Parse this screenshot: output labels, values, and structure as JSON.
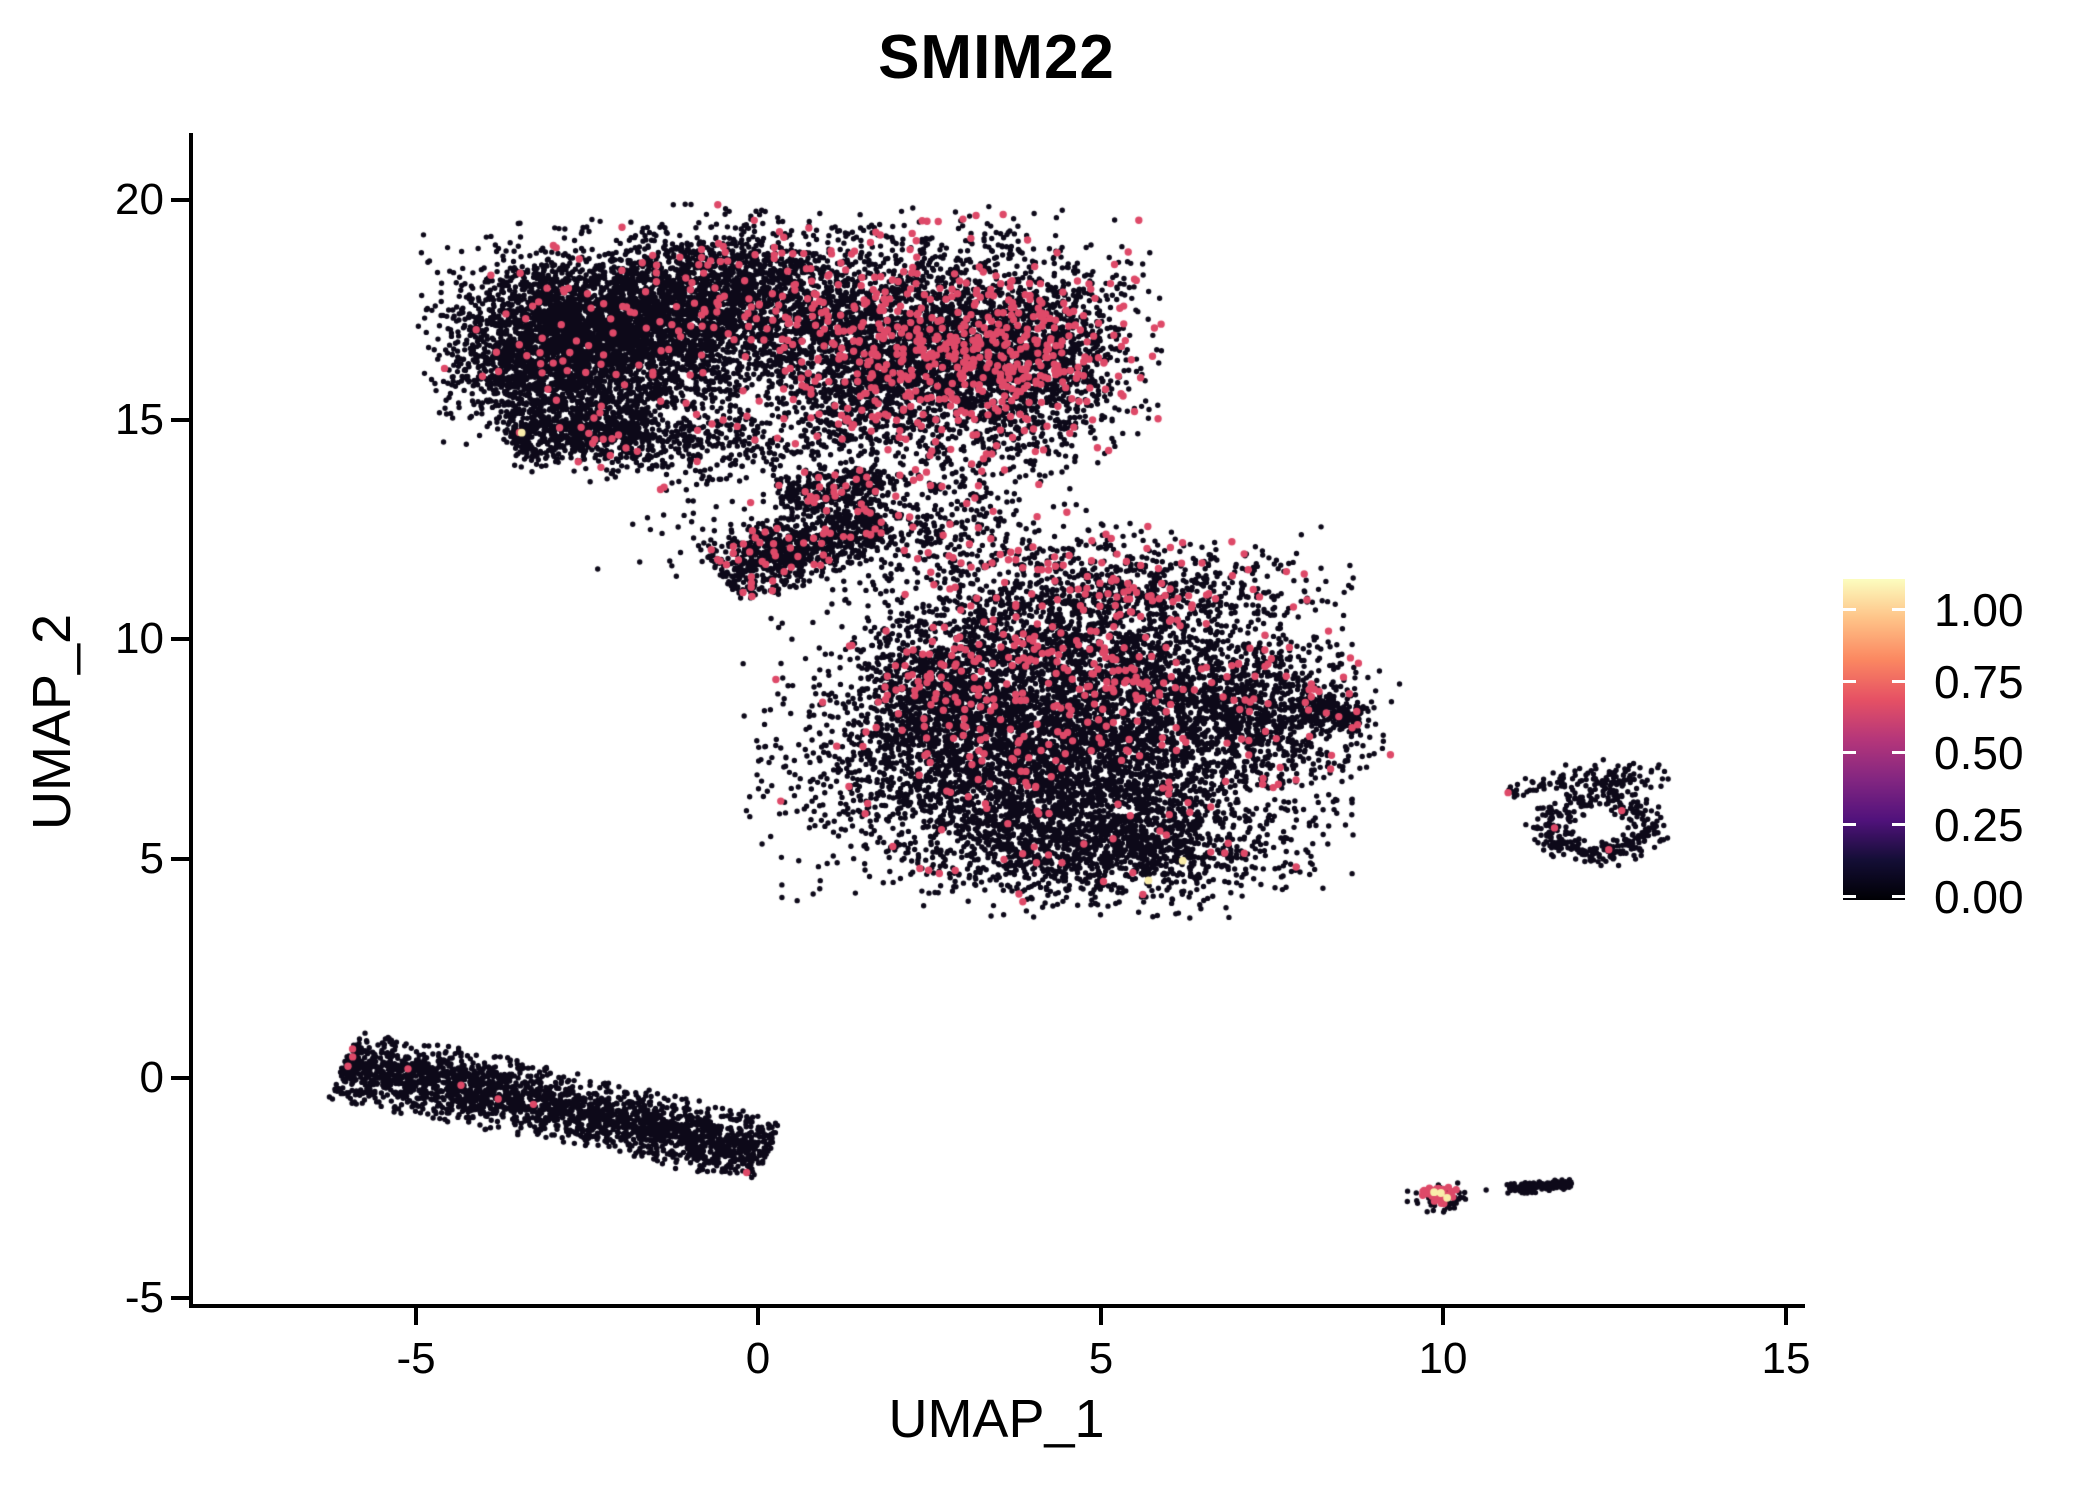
{
  "title": "SMIM22",
  "axes": {
    "xlabel": "UMAP_1",
    "ylabel": "UMAP_2",
    "x_tick_labels": [
      "-5",
      "0",
      "5",
      "10",
      "15"
    ],
    "y_tick_labels": [
      "20",
      "15",
      "10",
      "5",
      "0",
      "-5"
    ]
  },
  "colorbar": {
    "labels": [
      "1.00",
      "0.75",
      "0.50",
      "0.25",
      "0.00"
    ],
    "stops_from_bottom": [
      {
        "p": 0.0,
        "c": "#000004"
      },
      {
        "p": 0.125,
        "c": "#140e36"
      },
      {
        "p": 0.25,
        "c": "#51127c"
      },
      {
        "p": 0.375,
        "c": "#832681"
      },
      {
        "p": 0.5,
        "c": "#b5367a"
      },
      {
        "p": 0.625,
        "c": "#e65164"
      },
      {
        "p": 0.75,
        "c": "#fb8861"
      },
      {
        "p": 0.875,
        "c": "#fec287"
      },
      {
        "p": 1.0,
        "c": "#fcfdbf"
      }
    ]
  },
  "chart_data": {
    "type": "scatter",
    "title": "SMIM22",
    "xlabel": "UMAP_1",
    "ylabel": "UMAP_2",
    "x_ticks": [
      -5,
      0,
      5,
      10,
      15
    ],
    "y_ticks": [
      -5,
      0,
      5,
      10,
      15,
      20
    ],
    "xlim": [
      -8.3,
      15.3
    ],
    "ylim": [
      -5.3,
      21.6
    ],
    "legend_position": "right",
    "grid": false,
    "color_scale": {
      "low_value": 0.0,
      "high_value": 1.0,
      "colormap": "magma"
    },
    "point_colors": {
      "black": "#0d0919",
      "red": "#de4968",
      "cream": "#f9edaa"
    },
    "point_radius": {
      "black": 2.7,
      "red": 3.7,
      "cream": 3.9
    },
    "clusters": [
      {
        "name": "top-left-lobe-core",
        "shape": "gauss",
        "cx": -2.0,
        "cy": 17.0,
        "sx": 1.15,
        "sy": 1.0,
        "n": 3600,
        "red": 0.02
      },
      {
        "name": "top-left-lobe-west",
        "shape": "gauss",
        "cx": -3.2,
        "cy": 16.3,
        "sx": 0.62,
        "sy": 0.85,
        "n": 900,
        "red": 0.015
      },
      {
        "name": "top-left-south-tail",
        "shape": "line",
        "x1": -3.6,
        "y1": 14.55,
        "x2": -1.6,
        "y2": 14.85,
        "w": 0.32,
        "n": 520,
        "red": 0.02
      },
      {
        "name": "top-mid-upper",
        "shape": "gauss",
        "cx": -0.2,
        "cy": 17.9,
        "sx": 0.85,
        "sy": 0.8,
        "n": 1100,
        "red": 0.05
      },
      {
        "name": "top-right-lobe",
        "shape": "gauss",
        "cx": 2.9,
        "cy": 16.6,
        "sx": 1.15,
        "sy": 1.25,
        "n": 3000,
        "red": 0.14
      },
      {
        "name": "top-right-lobe-east",
        "shape": "gauss",
        "cx": 4.2,
        "cy": 16.3,
        "sx": 0.5,
        "sy": 0.95,
        "n": 550,
        "red": 0.16
      },
      {
        "name": "top-center-column",
        "shape": "gauss",
        "cx": 1.4,
        "cy": 16.2,
        "sx": 0.7,
        "sy": 1.3,
        "n": 950,
        "red": 0.1
      },
      {
        "name": "top-south-sparse",
        "shape": "gauss",
        "cx": -1.2,
        "cy": 14.5,
        "sx": 1.0,
        "sy": 0.45,
        "n": 420,
        "red": 0.03
      },
      {
        "name": "isthmus-wedge",
        "shape": "line",
        "x1": -0.55,
        "y1": 11.45,
        "x2": 1.8,
        "y2": 12.75,
        "w": 0.36,
        "n": 780,
        "red": 0.07
      },
      {
        "name": "isthmus-upper-streak",
        "shape": "line",
        "x1": 0.3,
        "y1": 13.25,
        "x2": 1.8,
        "y2": 13.6,
        "w": 0.25,
        "n": 230,
        "red": 0.1
      },
      {
        "name": "bridge-sparse",
        "shape": "gauss",
        "cx": 2.7,
        "cy": 12.7,
        "sx": 0.85,
        "sy": 0.75,
        "n": 300,
        "red": 0.08
      },
      {
        "name": "bridge-spray",
        "shape": "gauss",
        "cx": 0.7,
        "cy": 12.4,
        "sx": 1.3,
        "sy": 0.5,
        "n": 170,
        "red": 0.05
      },
      {
        "name": "mid-cluster-upper",
        "shape": "gauss",
        "cx": 4.6,
        "cy": 9.4,
        "sx": 1.7,
        "sy": 1.15,
        "n": 2900,
        "red": 0.09
      },
      {
        "name": "mid-cluster-lower",
        "shape": "gauss",
        "cx": 4.3,
        "cy": 6.9,
        "sx": 1.75,
        "sy": 1.15,
        "n": 3400,
        "red": 0.025
      },
      {
        "name": "mid-cluster-left",
        "shape": "gauss",
        "cx": 2.7,
        "cy": 8.4,
        "sx": 0.6,
        "sy": 1.0,
        "n": 600,
        "red": 0.05
      },
      {
        "name": "mid-cluster-bottom",
        "shape": "gauss",
        "cx": 5.1,
        "cy": 5.2,
        "sx": 1.25,
        "sy": 0.6,
        "n": 950,
        "red": 0.018
      },
      {
        "name": "mid-cluster-right",
        "shape": "gauss",
        "cx": 7.3,
        "cy": 8.3,
        "sx": 0.8,
        "sy": 0.75,
        "n": 650,
        "red": 0.06
      },
      {
        "name": "mid-right-tip",
        "shape": "line",
        "x1": 7.9,
        "y1": 8.4,
        "x2": 8.85,
        "y2": 8.2,
        "w": 0.17,
        "n": 130,
        "red": 0.05
      },
      {
        "name": "mid-top-fringe",
        "shape": "gauss",
        "cx": 5.4,
        "cy": 11.3,
        "sx": 1.3,
        "sy": 0.55,
        "n": 480,
        "red": 0.09
      },
      {
        "name": "elongated-left",
        "shape": "line",
        "x1": -6.05,
        "y1": 0.32,
        "x2": -3.0,
        "y2": -0.6,
        "w": 0.38,
        "n": 1200,
        "red": 0.011
      },
      {
        "name": "elongated-right",
        "shape": "line",
        "x1": -3.0,
        "y1": -0.6,
        "x2": 0.15,
        "y2": -1.72,
        "w": 0.36,
        "n": 1200,
        "red": 0.001
      },
      {
        "name": "right-ring",
        "shape": "ring",
        "cx": 12.25,
        "cy": 5.72,
        "r": 0.72,
        "w": 0.17,
        "n": 340,
        "red": 0.004
      },
      {
        "name": "right-ring-top",
        "shape": "gauss",
        "cx": 12.45,
        "cy": 6.85,
        "sx": 0.38,
        "sy": 0.18,
        "n": 90,
        "red": 0
      },
      {
        "name": "right-ring-arm",
        "shape": "line",
        "x1": 10.95,
        "y1": 6.55,
        "x2": 11.75,
        "y2": 6.8,
        "w": 0.1,
        "n": 35,
        "red": 0
      },
      {
        "name": "bottom-right-base",
        "shape": "gauss",
        "cx": 9.95,
        "cy": -2.72,
        "sx": 0.2,
        "sy": 0.15,
        "n": 50,
        "red": 0
      },
      {
        "name": "bottom-right-hot",
        "shape": "gauss",
        "cx": 9.93,
        "cy": -2.66,
        "sx": 0.13,
        "sy": 0.09,
        "n": 38,
        "red": 1.0
      },
      {
        "name": "bottom-right-dash",
        "shape": "line",
        "x1": 10.92,
        "y1": -2.54,
        "x2": 11.88,
        "y2": -2.42,
        "w": 0.06,
        "n": 140,
        "red": 0
      }
    ],
    "singletons": [
      {
        "x": 5.0,
        "y": 3.72,
        "c": "black"
      },
      {
        "x": 10.63,
        "y": -2.55,
        "c": "black"
      },
      {
        "x": -3.45,
        "y": 14.7,
        "c": "cream"
      },
      {
        "x": 6.2,
        "y": 4.95,
        "c": "cream"
      },
      {
        "x": 5.7,
        "y": 4.5,
        "c": "cream"
      },
      {
        "x": 9.87,
        "y": -2.6,
        "c": "cream"
      },
      {
        "x": 9.97,
        "y": -2.62,
        "c": "cream"
      },
      {
        "x": 10.06,
        "y": -2.73,
        "c": "cream"
      },
      {
        "x": 10.95,
        "y": 6.5,
        "c": "red"
      },
      {
        "x": 12.42,
        "y": 5.2,
        "c": "red"
      }
    ]
  }
}
